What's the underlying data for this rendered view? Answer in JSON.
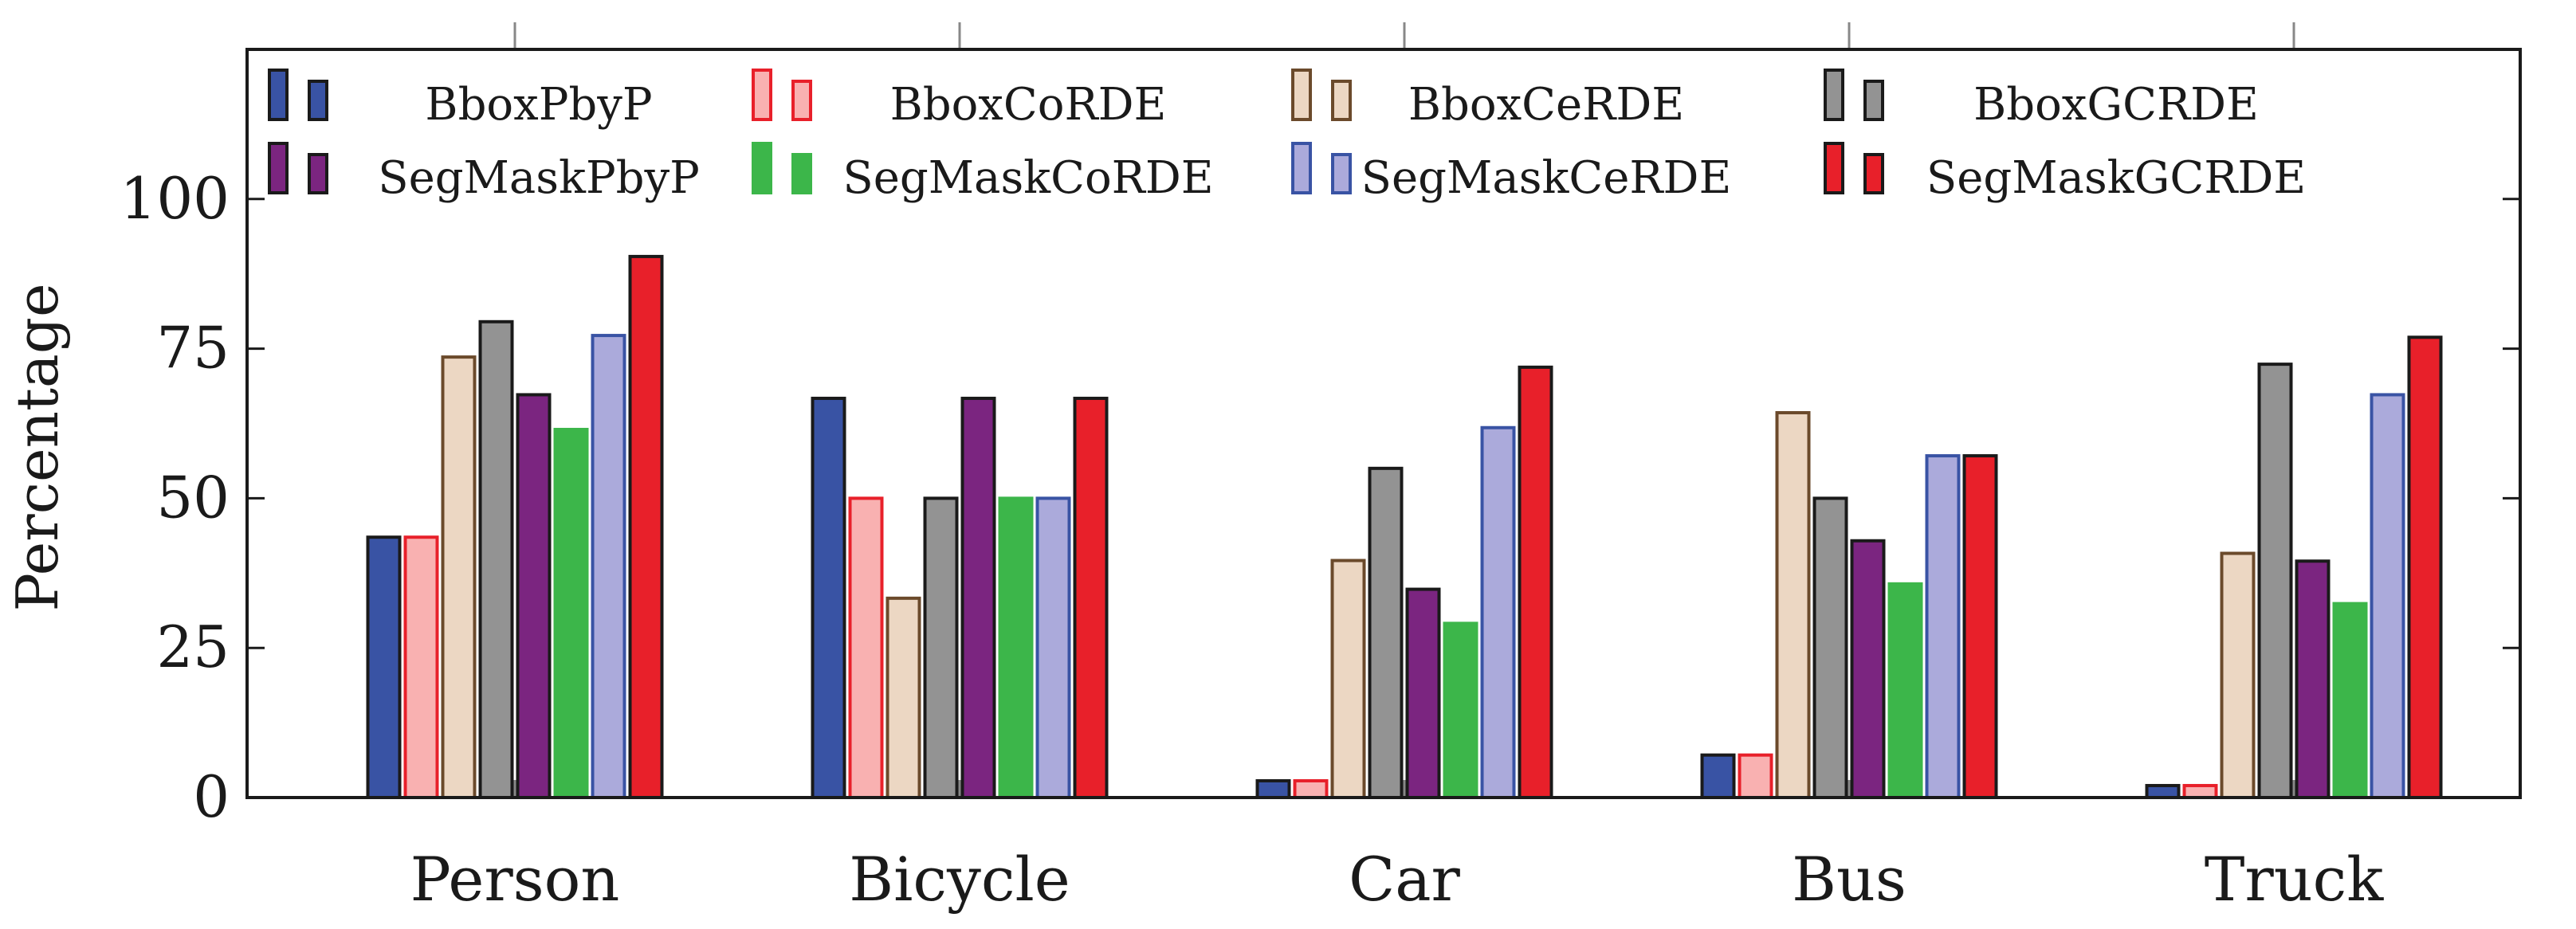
{
  "chart_data": {
    "type": "bar",
    "title": "",
    "xlabel": "",
    "ylabel": "Percentage",
    "ylim": [
      0,
      125
    ],
    "yticks": [
      0,
      25,
      50,
      75,
      100
    ],
    "ytick_labels": [
      "0",
      "25",
      "50",
      "75",
      "100"
    ],
    "grid": false,
    "legend_position": "top (inside, 4 columns)",
    "categories": [
      "Person",
      "Bicycle",
      "Car",
      "Bus",
      "Truck"
    ],
    "series": [
      {
        "name": "BboxPbyP",
        "values": [
          43.5,
          66.7,
          2.8,
          7.1,
          2.0
        ],
        "fill": "#3953a4",
        "stroke": "#1a1a1a"
      },
      {
        "name": "BboxCoRDE",
        "values": [
          43.5,
          50.0,
          2.8,
          7.1,
          2.0
        ],
        "fill": "#f9b1b1",
        "stroke": "#e8202a"
      },
      {
        "name": "BboxCeRDE",
        "values": [
          73.6,
          33.3,
          39.6,
          64.3,
          40.8
        ],
        "fill": "#ecd7c3",
        "stroke": "#6b4a2b"
      },
      {
        "name": "BboxGCRDE",
        "values": [
          79.5,
          50.0,
          55.0,
          50.0,
          72.4
        ],
        "fill": "#939393",
        "stroke": "#1a1a1a"
      },
      {
        "name": "SegMaskPbyP",
        "values": [
          67.3,
          66.7,
          34.8,
          42.9,
          39.5
        ],
        "fill": "#7b2580",
        "stroke": "#1a1a1a"
      },
      {
        "name": "SegMaskCoRDE",
        "values": [
          61.5,
          50.0,
          29.1,
          35.7,
          32.4
        ],
        "fill": "#3cb64a",
        "stroke": "#3cb64a"
      },
      {
        "name": "SegMaskCeRDE",
        "values": [
          77.2,
          50.0,
          61.8,
          57.1,
          67.3
        ],
        "fill": "#abaadb",
        "stroke": "#3953a4"
      },
      {
        "name": "SegMaskGCRDE",
        "values": [
          90.4,
          66.7,
          71.9,
          57.1,
          76.9
        ],
        "fill": "#e8202a",
        "stroke": "#1a1a1a"
      }
    ]
  }
}
